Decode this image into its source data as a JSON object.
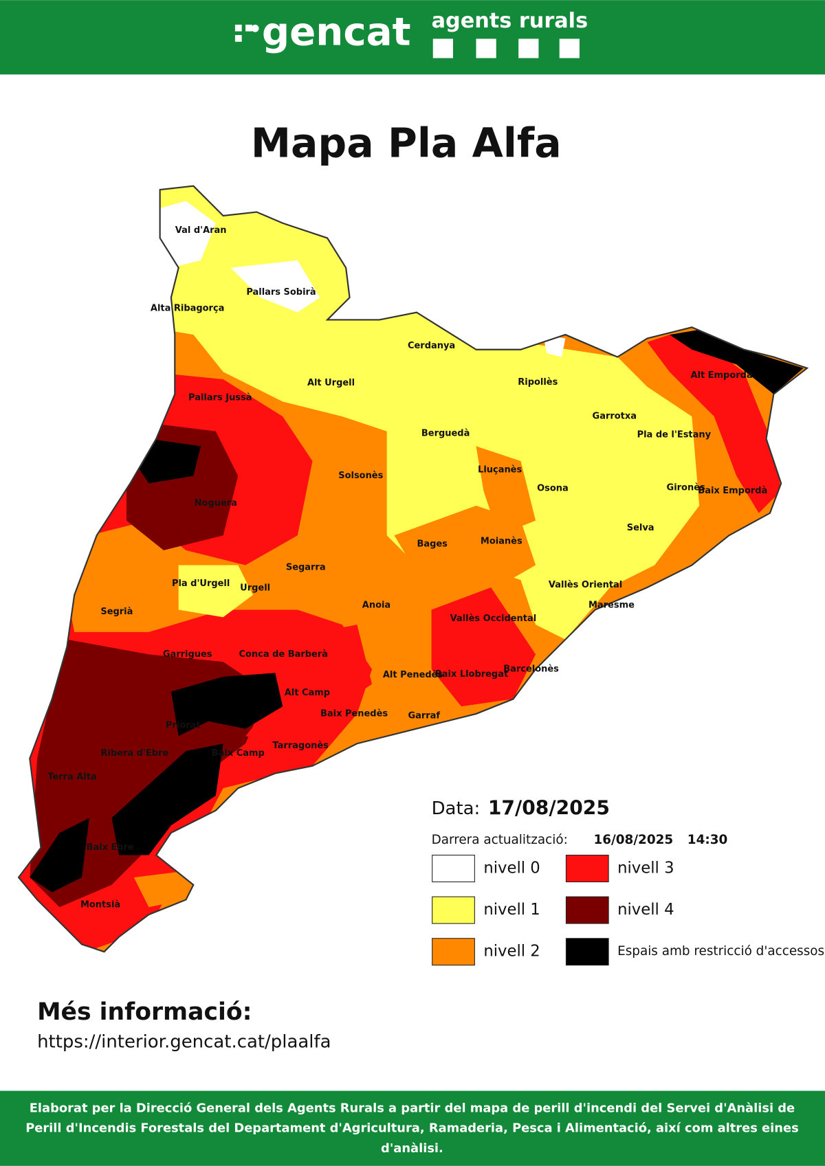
{
  "header": {
    "logo": "gencat",
    "brand": "agents rurals"
  },
  "title": "Mapa Pla Alfa",
  "map": {
    "regions": [
      "Val d'Aran",
      "Pallars Sobirà",
      "Alta Ribagorça",
      "Cerdanya",
      "Alt Urgell",
      "Alt Empordà",
      "Ripollès",
      "Pallars Jussà",
      "Garrotxa",
      "Pla de l'Estany",
      "Berguedà",
      "Solsonès",
      "Lluçanès",
      "Osona",
      "Gironès",
      "Baix Empordà",
      "Noguera",
      "Selva",
      "Bages",
      "Moianès",
      "Segarra",
      "Pla d'Urgell",
      "Urgell",
      "Vallès Oriental",
      "Segrià",
      "Anoia",
      "Maresme",
      "Vallès Occidental",
      "Garrigues",
      "Conca de Barberà",
      "Alt Penedès",
      "Baix Llobregat",
      "Barcelonès",
      "Alt Camp",
      "Baix Penedès",
      "Garraf",
      "Priorat",
      "Tarragonès",
      "Ribera d'Ebre",
      "Baix Camp",
      "Terra Alta",
      "Baix Ebre",
      "Montsià"
    ]
  },
  "legend": {
    "date_label": "Data:",
    "date": "17/08/2025",
    "update_label": "Darrera actualització:",
    "update_date": "16/08/2025",
    "update_time": "14:30",
    "items": [
      {
        "label": "nivell 0",
        "color": "#ffffff"
      },
      {
        "label": "nivell 1",
        "color": "#ffff55"
      },
      {
        "label": "nivell 2",
        "color": "#ff8800"
      },
      {
        "label": "nivell 3",
        "color": "#ff1010"
      },
      {
        "label": "nivell 4",
        "color": "#7a0000"
      },
      {
        "label": "Espais amb restricció d'accessos",
        "color": "#000000"
      }
    ]
  },
  "more_info": {
    "title": "Més informació:",
    "url": "https://interior.gencat.cat/plaalfa"
  },
  "footer": {
    "lines": [
      "Elaborat per la Direcció General dels Agents Rurals a partir del mapa de perill d'incendi del Servei d'Anàlisi de",
      "Perill d'Incendis Forestals del Departament d'Agricultura, Ramaderia, Pesca i Alimentació, així com altres eines",
      "d'anàlisi."
    ]
  }
}
